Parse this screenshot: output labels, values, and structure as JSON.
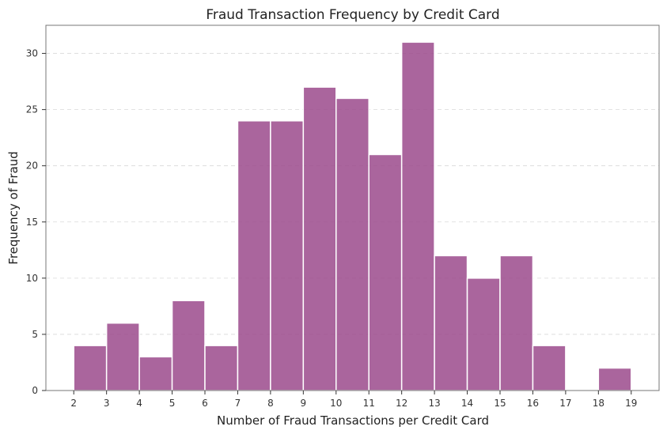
{
  "chart_data": {
    "type": "bar",
    "title": "Fraud Transaction Frequency by Credit Card",
    "xlabel": "Number of Fraud Transactions per Credit Card",
    "ylabel": "Frequency of Fraud",
    "bin_edges": [
      2,
      3,
      4,
      5,
      6,
      7,
      8,
      9,
      10,
      11,
      12,
      13,
      14,
      15,
      16,
      17,
      18,
      19
    ],
    "values": [
      4,
      6,
      3,
      8,
      4,
      24,
      24,
      27,
      26,
      21,
      31,
      12,
      10,
      12,
      4,
      0,
      2
    ],
    "xlim": [
      1.15,
      19.85
    ],
    "ylim": [
      0,
      32.5
    ],
    "x_ticks": [
      2,
      3,
      4,
      5,
      6,
      7,
      8,
      9,
      10,
      11,
      12,
      13,
      14,
      15,
      16,
      17,
      18,
      19
    ],
    "y_ticks": [
      0,
      5,
      10,
      15,
      20,
      25,
      30
    ],
    "grid": "y-dashed",
    "bar_color": "#9b4a8c"
  }
}
